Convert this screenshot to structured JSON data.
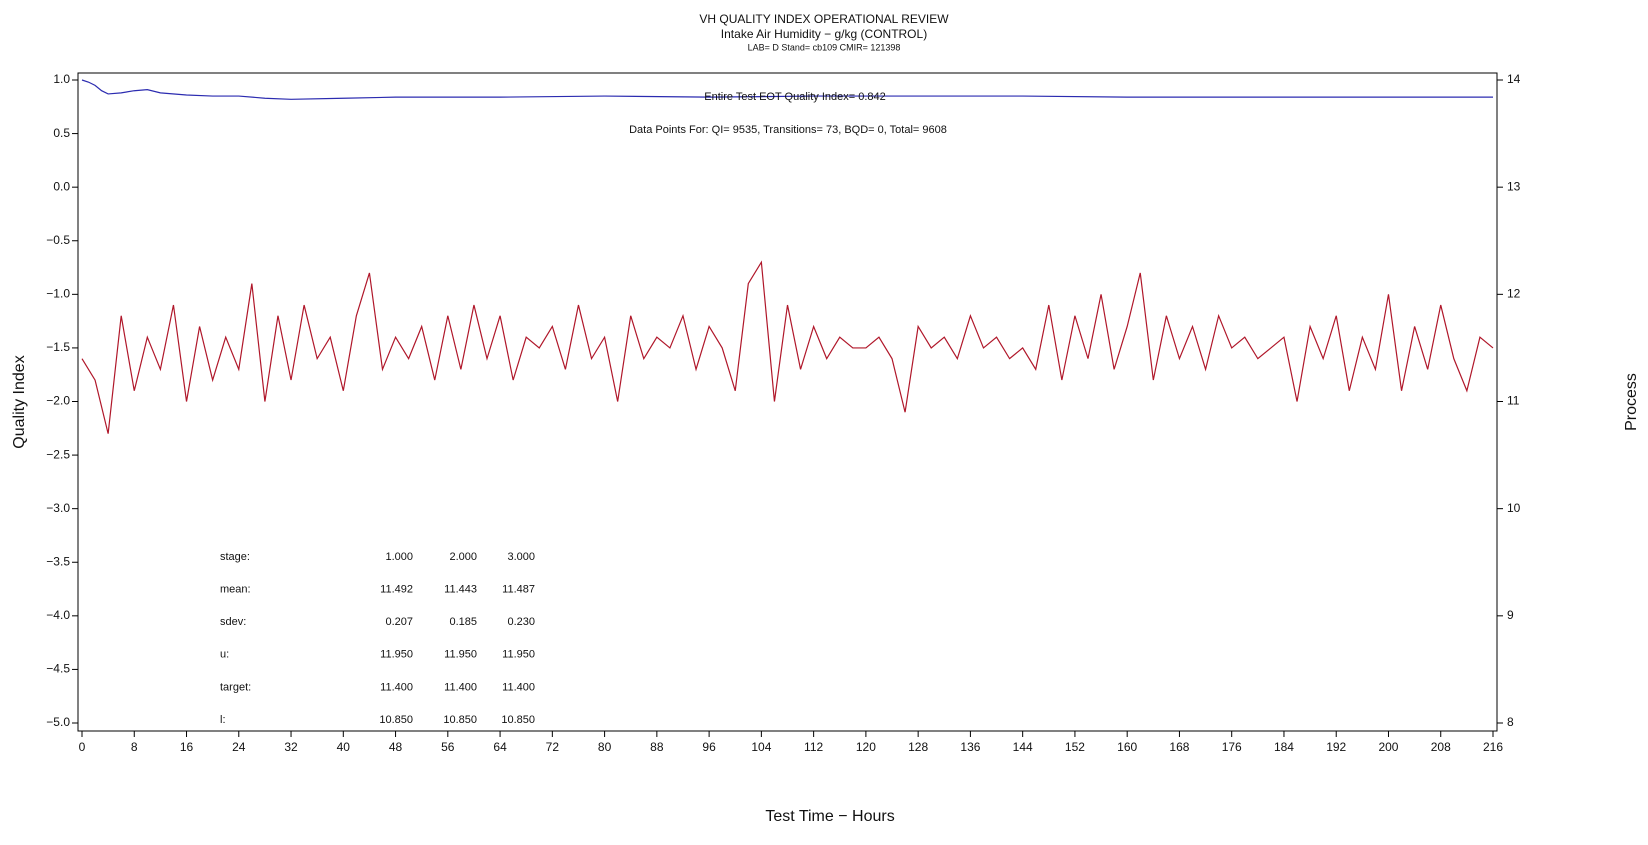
{
  "chart_data": {
    "type": "line",
    "title": "VH QUALITY INDEX OPERATIONAL REVIEW",
    "subtitle": "Intake Air Humidity − g/kg (CONTROL)",
    "subtitle2": "LAB= D Stand= cb109 CMIR= 121398",
    "xlabel": "Test Time − Hours",
    "ylabel": "Quality Index",
    "y2label": "Process",
    "annotations": [
      "Entire Test EOT Quality Index=   0.842",
      "Data Points For: QI=  9535, Transitions=    73, BQD=     0, Total=  9608"
    ],
    "stats": [
      [
        "stage:",
        "1.000",
        "2.000",
        "3.000"
      ],
      [
        "mean:",
        "11.492",
        "11.443",
        "11.487"
      ],
      [
        "sdev:",
        "0.207",
        "0.185",
        "0.230"
      ],
      [
        "u:",
        "11.950",
        "11.950",
        "11.950"
      ],
      [
        "target:",
        "11.400",
        "11.400",
        "11.400"
      ],
      [
        "l:",
        "10.850",
        "10.850",
        "10.850"
      ]
    ],
    "xlim": [
      0,
      216
    ],
    "xticks": [
      0,
      8,
      16,
      24,
      32,
      40,
      48,
      56,
      64,
      72,
      80,
      88,
      96,
      104,
      112,
      120,
      128,
      136,
      144,
      152,
      160,
      168,
      176,
      184,
      192,
      200,
      208,
      216
    ],
    "ylim": [
      -5,
      1
    ],
    "yticks": [
      {
        "value": -5,
        "label": "−5.0"
      },
      {
        "value": -4.5,
        "label": "−4.5"
      },
      {
        "value": -4,
        "label": "−4.0"
      },
      {
        "value": -3.5,
        "label": "−3.5"
      },
      {
        "value": -3,
        "label": "−3.0"
      },
      {
        "value": -2.5,
        "label": "−2.5"
      },
      {
        "value": -2,
        "label": "−2.0"
      },
      {
        "value": -1.5,
        "label": "−1.5"
      },
      {
        "value": -1,
        "label": "−1.0"
      },
      {
        "value": -0.5,
        "label": "−0.5"
      },
      {
        "value": 0,
        "label": "0.0"
      },
      {
        "value": 0.5,
        "label": "0.5"
      },
      {
        "value": 1,
        "label": "1.0"
      }
    ],
    "y2lim": [
      8,
      14
    ],
    "y2ticks": [
      8,
      9,
      10,
      11,
      12,
      13,
      14
    ],
    "series": [
      {
        "color": "#2b2bb0",
        "axis": "y",
        "x": [
          0,
          1,
          2,
          3,
          4,
          6,
          8,
          10,
          12,
          16,
          20,
          24,
          28,
          32,
          40,
          48,
          64,
          80,
          96,
          112,
          128,
          144,
          160,
          176,
          192,
          208,
          212,
          216
        ],
        "values": [
          1.0,
          0.98,
          0.95,
          0.9,
          0.87,
          0.88,
          0.9,
          0.91,
          0.88,
          0.86,
          0.85,
          0.85,
          0.83,
          0.82,
          0.83,
          0.84,
          0.84,
          0.85,
          0.84,
          0.85,
          0.85,
          0.85,
          0.84,
          0.84,
          0.84,
          0.84,
          0.84,
          0.84
        ]
      },
      {
        "color": "#b0172a",
        "axis": "y2",
        "x": [
          0,
          2,
          4,
          6,
          8,
          10,
          12,
          14,
          16,
          18,
          20,
          22,
          24,
          26,
          28,
          30,
          32,
          34,
          36,
          38,
          40,
          42,
          44,
          46,
          48,
          50,
          52,
          54,
          56,
          58,
          60,
          62,
          64,
          66,
          68,
          70,
          72,
          74,
          76,
          78,
          80,
          82,
          84,
          86,
          88,
          90,
          92,
          94,
          96,
          98,
          100,
          102,
          104,
          106,
          108,
          110,
          112,
          114,
          116,
          118,
          120,
          122,
          124,
          126,
          128,
          130,
          132,
          134,
          136,
          138,
          140,
          142,
          144,
          146,
          148,
          150,
          152,
          154,
          156,
          158,
          160,
          162,
          164,
          166,
          168,
          170,
          172,
          174,
          176,
          178,
          180,
          182,
          184,
          186,
          188,
          190,
          192,
          194,
          196,
          198,
          200,
          202,
          204,
          206,
          208,
          210,
          212,
          214,
          216
        ],
        "values": [
          11.4,
          11.2,
          10.7,
          11.8,
          11.1,
          11.6,
          11.3,
          11.9,
          11.0,
          11.7,
          11.2,
          11.6,
          11.3,
          12.1,
          11.0,
          11.8,
          11.2,
          11.9,
          11.4,
          11.6,
          11.1,
          11.8,
          12.2,
          11.3,
          11.6,
          11.4,
          11.7,
          11.2,
          11.8,
          11.3,
          11.9,
          11.4,
          11.8,
          11.2,
          11.6,
          11.5,
          11.7,
          11.3,
          11.9,
          11.4,
          11.6,
          11.0,
          11.8,
          11.4,
          11.6,
          11.5,
          11.8,
          11.3,
          11.7,
          11.5,
          11.1,
          12.1,
          12.3,
          11.0,
          11.9,
          11.3,
          11.7,
          11.4,
          11.6,
          11.5,
          11.5,
          11.6,
          11.4,
          10.9,
          11.7,
          11.5,
          11.6,
          11.4,
          11.8,
          11.5,
          11.6,
          11.4,
          11.5,
          11.3,
          11.9,
          11.2,
          11.8,
          11.4,
          12.0,
          11.3,
          11.7,
          12.2,
          11.2,
          11.8,
          11.4,
          11.7,
          11.3,
          11.8,
          11.5,
          11.6,
          11.4,
          11.5,
          11.6,
          11.0,
          11.7,
          11.4,
          11.8,
          11.1,
          11.6,
          11.3,
          12.0,
          11.1,
          11.7,
          11.3,
          11.9,
          11.4,
          11.1,
          11.6,
          11.5
        ]
      }
    ]
  }
}
